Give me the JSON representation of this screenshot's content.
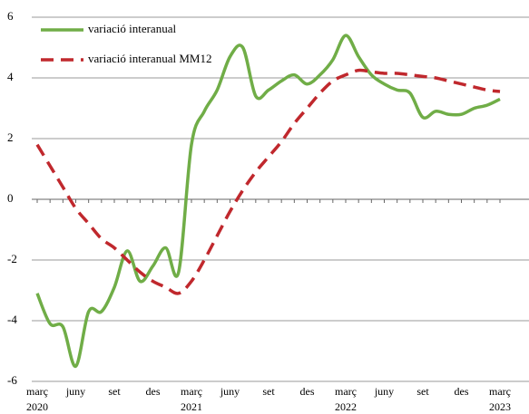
{
  "chart_data": {
    "type": "line",
    "categories": [
      "març\n2020",
      null,
      null,
      "juny",
      null,
      null,
      "set",
      null,
      null,
      "des",
      null,
      null,
      "març\n2021",
      null,
      null,
      "juny",
      null,
      null,
      "set",
      null,
      null,
      "des",
      null,
      null,
      "març\n2022",
      null,
      null,
      "juny",
      null,
      null,
      "set",
      null,
      null,
      "des",
      null,
      null,
      "març\n2023"
    ],
    "series": [
      {
        "name": "variació interanual",
        "color": "#70ad47",
        "dash": false,
        "values": [
          -3.1,
          -4.1,
          -4.2,
          -5.5,
          -3.7,
          -3.7,
          -2.9,
          -1.7,
          -2.7,
          -2.2,
          -1.6,
          -2.4,
          1.8,
          2.9,
          3.6,
          4.7,
          5.0,
          3.4,
          3.6,
          3.9,
          4.1,
          3.8,
          4.1,
          4.6,
          5.4,
          4.7,
          4.1,
          3.8,
          3.6,
          3.5,
          2.7,
          2.9,
          2.8,
          2.8,
          3.0,
          3.1,
          3.3
        ]
      },
      {
        "name": "variació interanual MM12",
        "color": "#c0282d",
        "dash": true,
        "values": [
          1.8,
          1.1,
          0.4,
          -0.3,
          -0.8,
          -1.3,
          -1.6,
          -2.0,
          -2.4,
          -2.7,
          -2.9,
          -3.1,
          -2.7,
          -2.0,
          -1.2,
          -0.4,
          0.3,
          0.9,
          1.4,
          1.9,
          2.5,
          3.0,
          3.5,
          3.9,
          4.1,
          4.25,
          4.2,
          4.15,
          4.15,
          4.1,
          4.05,
          4.0,
          3.9,
          3.8,
          3.7,
          3.6,
          3.55
        ]
      }
    ],
    "ylim": [
      -6,
      6
    ],
    "yticks": [
      6,
      4,
      2,
      0,
      -2,
      -4,
      -6
    ],
    "grid": true,
    "legend": "top-left"
  }
}
